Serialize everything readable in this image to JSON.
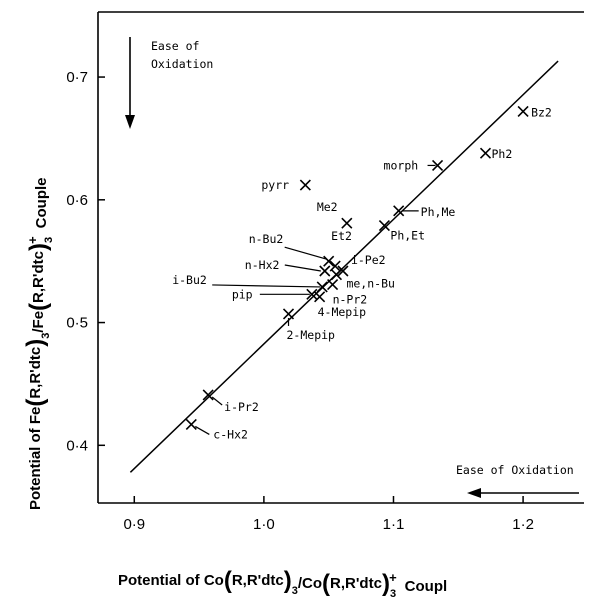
{
  "chart_data": {
    "type": "scatter",
    "xlabel": "Potential of Co(R,R'dtc)3/Co(R,R'dtc)3+ Couple",
    "ylabel": "Potential of Fe(R,R'dtc)3/Fe(R,R'dtc)3+ Couple",
    "xlim": [
      0.872,
      1.247
    ],
    "ylim": [
      0.353,
      0.753
    ],
    "xticks": [
      {
        "v": 0.9,
        "label": "0·9"
      },
      {
        "v": 1.0,
        "label": "1·0"
      },
      {
        "v": 1.1,
        "label": "1·1"
      },
      {
        "v": 1.2,
        "label": "1·2"
      }
    ],
    "yticks": [
      {
        "v": 0.4,
        "label": "0·4"
      },
      {
        "v": 0.5,
        "label": "0·5"
      },
      {
        "v": 0.6,
        "label": "0·6"
      },
      {
        "v": 0.7,
        "label": "0·7"
      }
    ],
    "fit_line": {
      "x": [
        0.897,
        1.227
      ],
      "y": [
        0.378,
        0.713
      ]
    },
    "points": [
      {
        "label": "Bz2",
        "x": 1.2,
        "y": 0.672
      },
      {
        "label": "Ph2",
        "x": 1.171,
        "y": 0.638
      },
      {
        "label": "morph",
        "x": 1.134,
        "y": 0.628
      },
      {
        "label": "pyrr",
        "x": 1.032,
        "y": 0.612
      },
      {
        "label": "Me2",
        "x": 1.064,
        "y": 0.581
      },
      {
        "label": "Ph,Me",
        "x": 1.104,
        "y": 0.591
      },
      {
        "label": "Ph,Et",
        "x": 1.093,
        "y": 0.579
      },
      {
        "label": "n-Bu2",
        "x": 1.05,
        "y": 0.55
      },
      {
        "label": "Et2",
        "x": 1.055,
        "y": 0.546
      },
      {
        "label": "n-Hx2",
        "x": 1.047,
        "y": 0.542
      },
      {
        "label": "i-Pe2",
        "x": 1.061,
        "y": 0.542
      },
      {
        "label": "me,n-Bu",
        "x": 1.056,
        "y": 0.539
      },
      {
        "label": "n-Pr2",
        "x": 1.053,
        "y": 0.531
      },
      {
        "label": "i-Bu2",
        "x": 1.045,
        "y": 0.529
      },
      {
        "label": "pip",
        "x": 1.037,
        "y": 0.523
      },
      {
        "label": "4-Mepip",
        "x": 1.043,
        "y": 0.521
      },
      {
        "label": "2-Mepip",
        "x": 1.019,
        "y": 0.507
      },
      {
        "label": "i-Pr2",
        "x": 0.957,
        "y": 0.441
      },
      {
        "label": "c-Hx2",
        "x": 0.944,
        "y": 0.417
      }
    ],
    "annotations": [
      {
        "text_lines": [
          "Ease of",
          "Oxidation"
        ],
        "arrow": "down"
      },
      {
        "text": "Ease of Oxidation",
        "arrow": "left"
      }
    ]
  }
}
